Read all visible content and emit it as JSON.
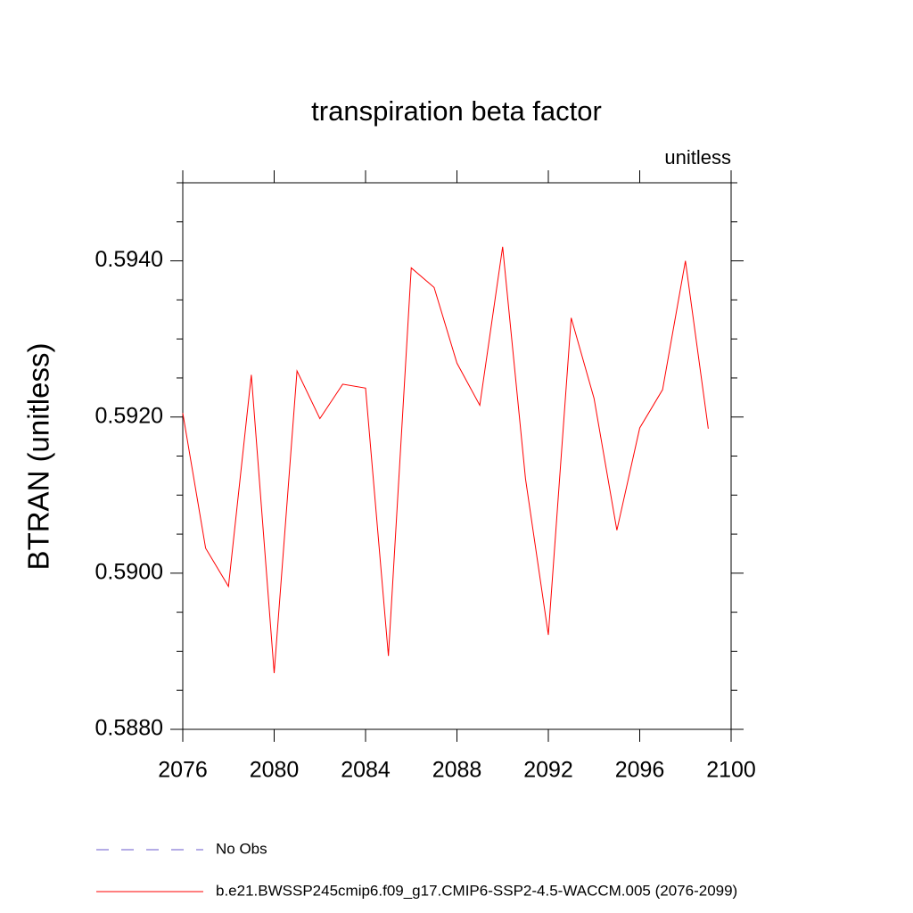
{
  "chart_data": {
    "type": "line",
    "title": "transpiration beta factor",
    "subtitle": "unitless",
    "y_label": "BTRAN  (unitless)",
    "x": [
      2076,
      2077,
      2078,
      2079,
      2080,
      2081,
      2082,
      2083,
      2084,
      2085,
      2086,
      2087,
      2088,
      2089,
      2090,
      2091,
      2092,
      2093,
      2094,
      2095,
      2096,
      2097,
      2098,
      2099
    ],
    "series": [
      {
        "name": "b.e21.BWSSP245cmip6.f09_g17.CMIP6-SSP2-4.5-WACCM.005 (2076-2099)",
        "color": "#ff0000",
        "values": [
          0.59205,
          0.59032,
          0.58983,
          0.59254,
          0.58872,
          0.59259,
          0.59198,
          0.59242,
          0.59237,
          0.58894,
          0.59391,
          0.59366,
          0.59269,
          0.59215,
          0.59418,
          0.59121,
          0.58921,
          0.59327,
          0.59224,
          0.59055,
          0.59186,
          0.59235,
          0.594,
          0.59185
        ]
      }
    ],
    "extra_legend": [
      {
        "name": "No Obs",
        "color": "#6a5acd",
        "dashed": true
      }
    ],
    "xlim": [
      2076,
      2100
    ],
    "xticks": [
      2076,
      2080,
      2084,
      2088,
      2092,
      2096,
      2100
    ],
    "ylim": [
      0.588,
      0.595
    ],
    "yticks": [
      {
        "value": 0.588,
        "label": "0.5880"
      },
      {
        "value": 0.59,
        "label": "0.5900"
      },
      {
        "value": 0.592,
        "label": "0.5920"
      },
      {
        "value": 0.594,
        "label": "0.5940"
      }
    ],
    "yminorticks": [
      0.5885,
      0.589,
      0.5895,
      0.5905,
      0.591,
      0.5915,
      0.5925,
      0.593,
      0.5935,
      0.5945,
      0.595
    ]
  }
}
